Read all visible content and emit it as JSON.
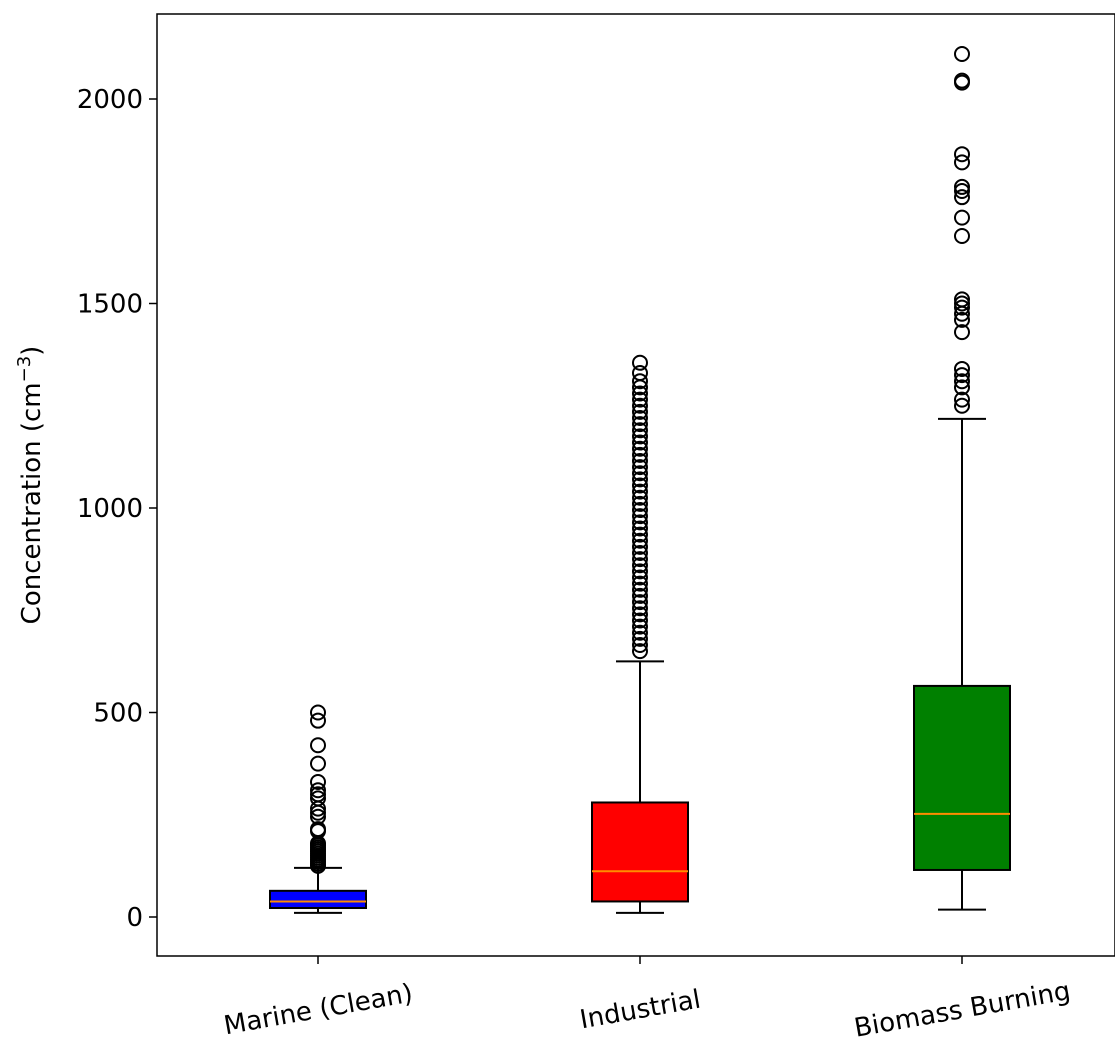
{
  "chart_data": {
    "type": "box",
    "categories": [
      "Marine (Clean)",
      "Industrial",
      "Biomass Burning"
    ],
    "ylabel": "Concentration (cm",
    "ylabel_sup": "−3",
    "ylabel_end": ")",
    "xlabel": "",
    "title": "",
    "ylim": [
      -95,
      2210
    ],
    "yticks": [
      0,
      500,
      1000,
      1500,
      2000
    ],
    "grid": false,
    "legend": "none",
    "boxes": [
      {
        "name": "Marine (Clean)",
        "color": "#0000ff",
        "whisker_low": 10,
        "q1": 22,
        "median": 38,
        "q3": 64,
        "whisker_high": 120,
        "outliers": [
          125,
          130,
          135,
          140,
          145,
          150,
          155,
          160,
          165,
          170,
          175,
          180,
          210,
          215,
          245,
          255,
          265,
          290,
          300,
          310,
          330,
          375,
          420,
          480,
          500
        ]
      },
      {
        "name": "Industrial",
        "color": "#ff0000",
        "whisker_low": 10,
        "q1": 38,
        "median": 112,
        "q3": 280,
        "whisker_high": 625,
        "outliers": [
          650,
          665,
          680,
          695,
          710,
          725,
          740,
          755,
          770,
          785,
          800,
          815,
          830,
          845,
          860,
          875,
          890,
          905,
          920,
          935,
          950,
          965,
          980,
          995,
          1010,
          1025,
          1040,
          1055,
          1070,
          1085,
          1100,
          1115,
          1130,
          1145,
          1160,
          1175,
          1190,
          1205,
          1220,
          1235,
          1250,
          1265,
          1280,
          1295,
          1310,
          1330,
          1355
        ]
      },
      {
        "name": "Biomass Burning",
        "color": "#008000",
        "whisker_low": 18,
        "q1": 115,
        "median": 252,
        "q3": 565,
        "whisker_high": 1218,
        "outliers": [
          1250,
          1265,
          1295,
          1310,
          1325,
          1340,
          1430,
          1460,
          1475,
          1490,
          1500,
          1510,
          1665,
          1710,
          1760,
          1775,
          1785,
          1845,
          1865,
          2040,
          2045,
          2110
        ]
      }
    ],
    "median_color": "#ff8c00"
  }
}
